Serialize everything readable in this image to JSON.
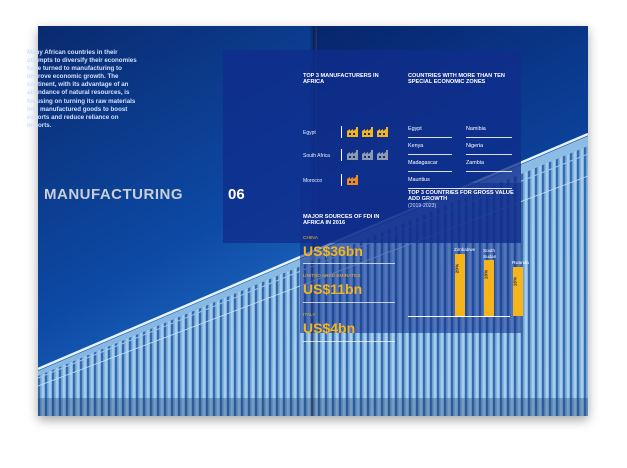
{
  "intro": {
    "text": "Many African countries in their attempts to diversify their economies have turned to manufacturing to improve economic growth. The continent, with its advantage of an abundance of natural resources, is focusing on turning its raw materials into manufactured goods to boost exports and reduce reliance on imports."
  },
  "section": {
    "title": "MANUFACTURING",
    "number": "06"
  },
  "manufacturers": {
    "heading": "TOP 3 MANUFACTURERS IN AFRICA",
    "rows": [
      {
        "country": "Egypt",
        "factories": 3,
        "color": "#f6b41b"
      },
      {
        "country": "South Africa",
        "factories": 3,
        "color": "#8e9aae"
      },
      {
        "country": "Morocco",
        "factories": 1,
        "color": "#f08a1c"
      }
    ]
  },
  "zones": {
    "heading": "COUNTRIES WITH MORE THAN TEN SPECIAL ECONOMIC ZONES",
    "left": [
      "Egypt",
      "Kenya",
      "Madagascar",
      "Mauritius"
    ],
    "right": [
      "Namibia",
      "Nigeria",
      "Zambia"
    ]
  },
  "fdi": {
    "heading": "MAJOR SOURCES OF FDI IN AFRICA IN 2016",
    "items": [
      {
        "country": "China",
        "value": "US$36bn"
      },
      {
        "country": "United Arab Emirates",
        "value": "US$11bn"
      },
      {
        "country": "Italy",
        "value": "US$4bn"
      }
    ]
  },
  "chart_data": {
    "type": "bar",
    "title": "TOP 3 COUNTRIES FOR GROSS VALUE ADD GROWTH",
    "subtitle": "(2019-2023)",
    "categories": [
      "Zimbabwe",
      "South Sudan",
      "Rwanda"
    ],
    "values": [
      20,
      18,
      16
    ],
    "value_labels": [
      "20%",
      "18%",
      "16%"
    ],
    "ylim": [
      0,
      22
    ],
    "bar_color": "#f6b41b"
  }
}
